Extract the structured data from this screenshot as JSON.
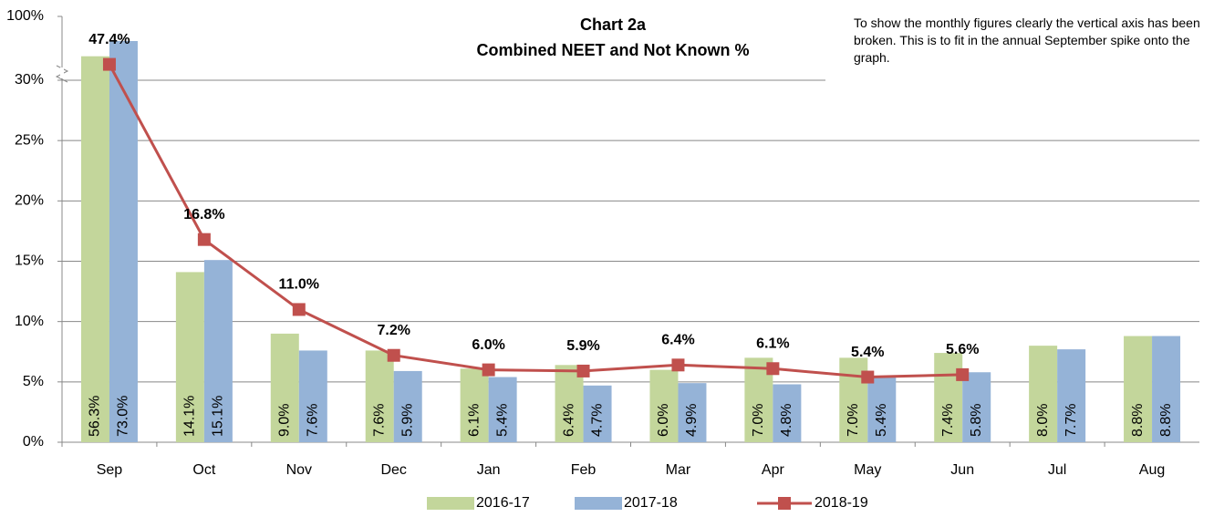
{
  "chart_data": {
    "type": "bar_line",
    "title": "Chart 2a",
    "subtitle": "Combined NEET and Not Known %",
    "annotation": "To show the monthly figures clearly the vertical axis has been broken.  This is to fit in the annual September spike onto the graph.",
    "categories": [
      "Sep",
      "Oct",
      "Nov",
      "Dec",
      "Jan",
      "Feb",
      "Mar",
      "Apr",
      "May",
      "Jun",
      "Jul",
      "Aug"
    ],
    "series": [
      {
        "name": "2016-17",
        "type": "bar",
        "color": "#c3d69b",
        "values": [
          56.3,
          14.1,
          9.0,
          7.6,
          6.1,
          6.4,
          6.0,
          7.0,
          7.0,
          7.4,
          8.0,
          8.8
        ],
        "value_labels": [
          "56.3%",
          "14.1%",
          "9.0%",
          "7.6%",
          "6.1%",
          "6.4%",
          "6.0%",
          "7.0%",
          "7.0%",
          "7.4%",
          "8.0%",
          "8.8%"
        ]
      },
      {
        "name": "2017-18",
        "type": "bar",
        "color": "#95b3d7",
        "values": [
          73.0,
          15.1,
          7.6,
          5.9,
          5.4,
          4.7,
          4.9,
          4.8,
          5.4,
          5.8,
          7.7,
          8.8
        ],
        "value_labels": [
          "73.0%",
          "15.1%",
          "7.6%",
          "5.9%",
          "5.4%",
          "4.7%",
          "4.9%",
          "4.8%",
          "5.4%",
          "5.8%",
          "7.7%",
          "8.8%"
        ]
      },
      {
        "name": "2018-19",
        "type": "line",
        "color": "#c0504d",
        "values": [
          47.4,
          16.8,
          11.0,
          7.2,
          6.0,
          5.9,
          6.4,
          6.1,
          5.4,
          5.6,
          null,
          null
        ],
        "value_labels": [
          "47.4%",
          "16.8%",
          "11.0%",
          "7.2%",
          "6.0%",
          "5.9%",
          "6.4%",
          "6.1%",
          "5.4%",
          "5.6%",
          null,
          null
        ]
      }
    ],
    "ylim": [
      0,
      100
    ],
    "axis_break": [
      30,
      100
    ],
    "yticks": [
      {
        "value": 0,
        "label": "0%"
      },
      {
        "value": 5,
        "label": "5%"
      },
      {
        "value": 10,
        "label": "10%"
      },
      {
        "value": 15,
        "label": "15%"
      },
      {
        "value": 20,
        "label": "20%"
      },
      {
        "value": 25,
        "label": "25%"
      },
      {
        "value": 30,
        "label": "30%"
      },
      {
        "value": 100,
        "label": "100%"
      }
    ],
    "grid": true,
    "legend": "bottom"
  }
}
